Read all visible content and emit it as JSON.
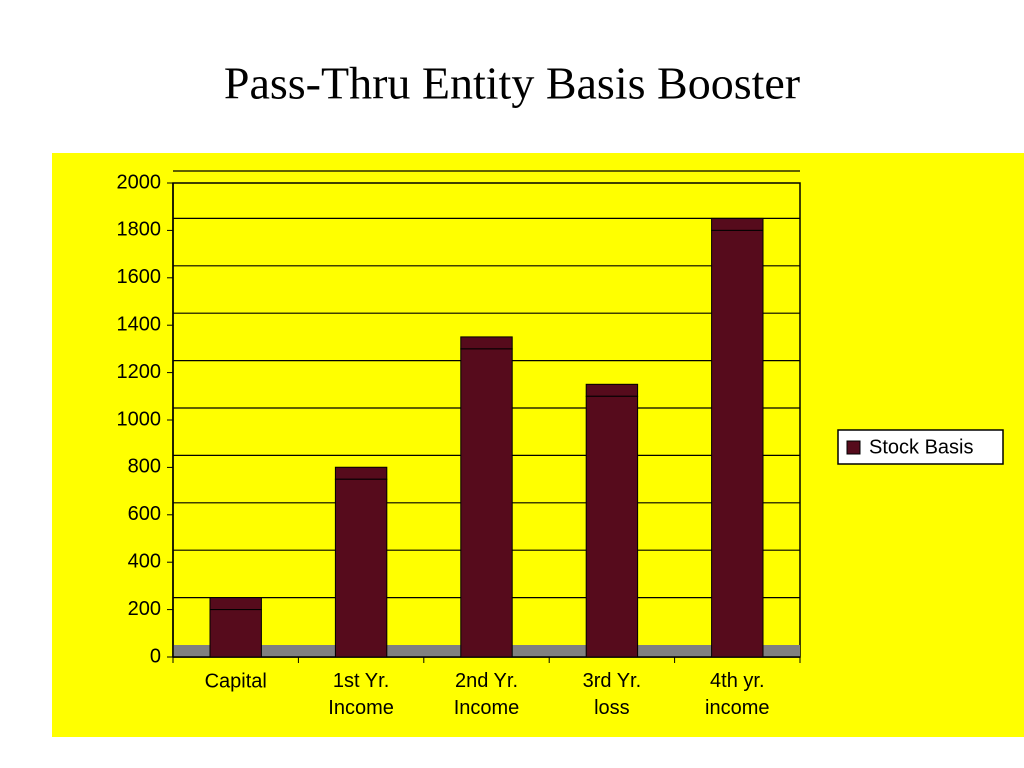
{
  "chart_data": {
    "type": "bar",
    "title": "Pass-Thru Entity Basis Booster",
    "categories": [
      "Capital",
      "1st Yr. Income",
      "2nd Yr. Income",
      "3rd Yr. loss",
      "4th yr. income"
    ],
    "series": [
      {
        "name": "Stock Basis",
        "color": "#560b1c",
        "values": [
          200,
          750,
          1300,
          1100,
          1800
        ]
      }
    ],
    "ylim": [
      0,
      2000
    ],
    "yticks": [
      0,
      200,
      400,
      600,
      800,
      1000,
      1200,
      1400,
      1600,
      1800,
      2000
    ],
    "grid": true,
    "legend": "right"
  }
}
